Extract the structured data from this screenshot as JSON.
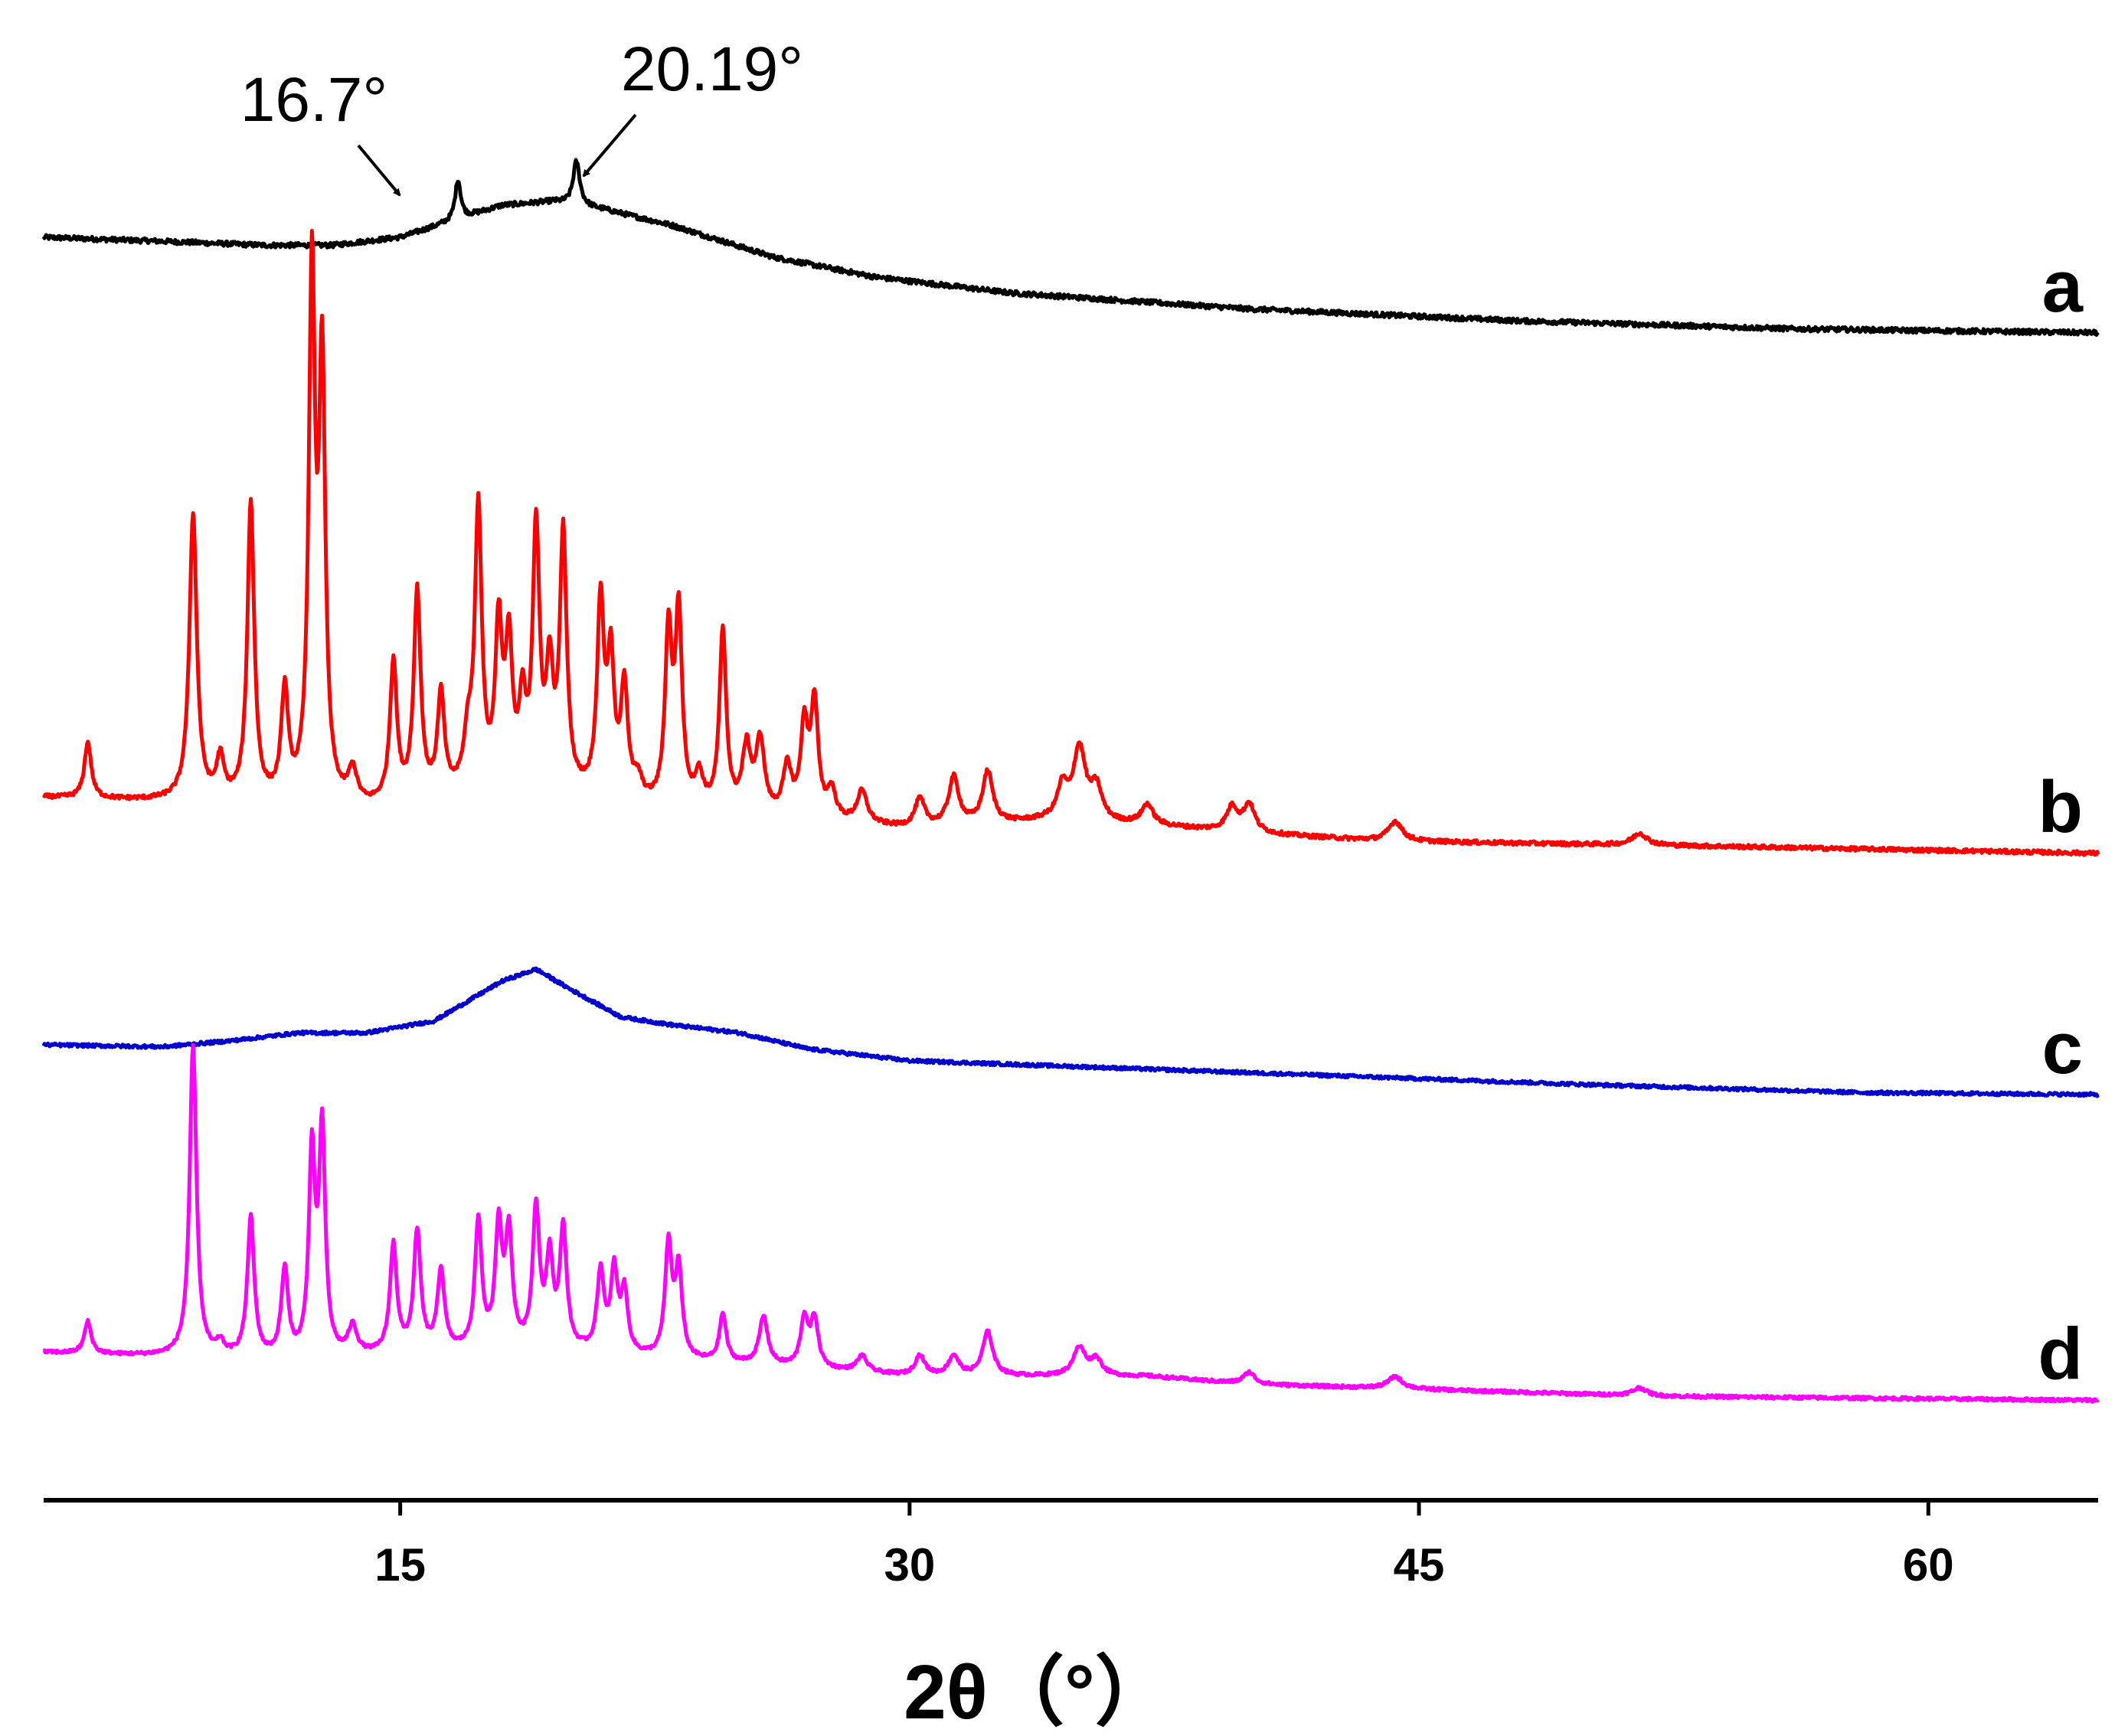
{
  "chart_data": {
    "type": "line",
    "xlabel": "2θ（°）",
    "xlim": [
      4.5,
      65
    ],
    "xticks": [
      15,
      30,
      45,
      60
    ],
    "series": [
      {
        "name": "a",
        "color": "#000000",
        "baseline": [
          [
            4.5,
            0.0
          ],
          [
            8,
            -0.01
          ],
          [
            11,
            -0.02
          ],
          [
            13,
            -0.02
          ],
          [
            15,
            0.0
          ],
          [
            16.5,
            0.04
          ],
          [
            18,
            0.08
          ],
          [
            19.5,
            0.09
          ],
          [
            21,
            0.07
          ],
          [
            23,
            0.03
          ],
          [
            26,
            -0.05
          ],
          [
            29,
            -0.1
          ],
          [
            33,
            -0.14
          ],
          [
            40,
            -0.18
          ],
          [
            48,
            -0.21
          ],
          [
            56,
            -0.23
          ],
          [
            65,
            -0.24
          ]
        ],
        "peaks": [
          [
            16.7,
            0.1,
            0.1
          ],
          [
            20.19,
            0.11,
            0.12
          ]
        ],
        "noise": 0.012
      },
      {
        "name": "b",
        "color": "#ff0000",
        "baseline": [
          [
            4.5,
            0.0
          ],
          [
            8,
            -0.01
          ],
          [
            12,
            -0.02
          ],
          [
            14,
            -0.03
          ],
          [
            17,
            0.0
          ],
          [
            20,
            0.0
          ],
          [
            23,
            -0.04
          ],
          [
            27,
            -0.06
          ],
          [
            30,
            -0.08
          ],
          [
            34,
            -0.06
          ],
          [
            37,
            -0.07
          ],
          [
            40,
            -0.09
          ],
          [
            44,
            -0.11
          ],
          [
            52,
            -0.12
          ],
          [
            65,
            -0.14
          ]
        ],
        "peaks": [
          [
            5.8,
            0.14,
            0.12
          ],
          [
            8.9,
            0.72,
            0.13
          ],
          [
            9.7,
            0.1,
            0.13
          ],
          [
            10.6,
            0.75,
            0.12
          ],
          [
            11.6,
            0.27,
            0.12
          ],
          [
            12.4,
            1.3,
            0.11
          ],
          [
            12.7,
            1.07,
            0.11
          ],
          [
            13.6,
            0.08,
            0.15
          ],
          [
            14.8,
            0.35,
            0.12
          ],
          [
            15.5,
            0.52,
            0.12
          ],
          [
            16.2,
            0.25,
            0.12
          ],
          [
            17.0,
            0.12,
            0.15
          ],
          [
            17.3,
            0.7,
            0.12
          ],
          [
            17.9,
            0.4,
            0.12
          ],
          [
            18.2,
            0.35,
            0.12
          ],
          [
            18.6,
            0.2,
            0.12
          ],
          [
            19.0,
            0.65,
            0.12
          ],
          [
            19.4,
            0.28,
            0.12
          ],
          [
            19.8,
            0.64,
            0.12
          ],
          [
            20.9,
            0.48,
            0.12
          ],
          [
            21.2,
            0.33,
            0.12
          ],
          [
            21.6,
            0.28,
            0.12
          ],
          [
            22.0,
            0.05,
            0.15
          ],
          [
            22.9,
            0.43,
            0.12
          ],
          [
            23.2,
            0.48,
            0.12
          ],
          [
            23.8,
            0.08,
            0.15
          ],
          [
            24.5,
            0.45,
            0.12
          ],
          [
            25.2,
            0.16,
            0.15
          ],
          [
            25.6,
            0.18,
            0.15
          ],
          [
            26.4,
            0.12,
            0.15
          ],
          [
            26.9,
            0.22,
            0.13
          ],
          [
            27.2,
            0.28,
            0.13
          ],
          [
            27.7,
            0.07,
            0.15
          ],
          [
            28.6,
            0.08,
            0.18
          ],
          [
            30.3,
            0.07,
            0.18
          ],
          [
            31.3,
            0.12,
            0.18
          ],
          [
            32.3,
            0.13,
            0.18
          ],
          [
            34.5,
            0.08,
            0.18
          ],
          [
            35.0,
            0.18,
            0.22
          ],
          [
            35.5,
            0.08,
            0.2
          ],
          [
            37.0,
            0.05,
            0.2
          ],
          [
            39.5,
            0.06,
            0.2
          ],
          [
            40.0,
            0.07,
            0.2
          ],
          [
            44.3,
            0.05,
            0.25
          ],
          [
            51.5,
            0.03,
            0.25
          ]
        ],
        "noise": 0.01
      },
      {
        "name": "c",
        "color": "#0000cc",
        "baseline": [
          [
            4.5,
            0.0
          ],
          [
            8,
            -0.005
          ],
          [
            10,
            0.01
          ],
          [
            12,
            0.03
          ],
          [
            14,
            0.03
          ],
          [
            16,
            0.06
          ],
          [
            18,
            0.16
          ],
          [
            19,
            0.19
          ],
          [
            20,
            0.14
          ],
          [
            21.5,
            0.07
          ],
          [
            23,
            0.05
          ],
          [
            25,
            0.03
          ],
          [
            27,
            -0.01
          ],
          [
            30,
            -0.04
          ],
          [
            40,
            -0.07
          ],
          [
            50,
            -0.1
          ],
          [
            58,
            -0.12
          ],
          [
            65,
            -0.125
          ]
        ],
        "peaks": [],
        "noise": 0.008
      },
      {
        "name": "d",
        "color": "#ff00ff",
        "baseline": [
          [
            4.5,
            0.0
          ],
          [
            8,
            -0.01
          ],
          [
            12,
            -0.02
          ],
          [
            16,
            0.0
          ],
          [
            20,
            0.0
          ],
          [
            23,
            -0.02
          ],
          [
            27,
            -0.04
          ],
          [
            30,
            -0.06
          ],
          [
            34,
            -0.06
          ],
          [
            37,
            -0.06
          ],
          [
            40,
            -0.08
          ],
          [
            44,
            -0.09
          ],
          [
            52,
            -0.11
          ],
          [
            65,
            -0.12
          ]
        ],
        "peaks": [
          [
            5.8,
            0.08,
            0.12
          ],
          [
            8.9,
            0.78,
            0.12
          ],
          [
            9.7,
            0.03,
            0.13
          ],
          [
            10.6,
            0.35,
            0.12
          ],
          [
            11.6,
            0.22,
            0.12
          ],
          [
            12.4,
            0.5,
            0.11
          ],
          [
            12.7,
            0.56,
            0.11
          ],
          [
            13.6,
            0.07,
            0.15
          ],
          [
            14.8,
            0.27,
            0.12
          ],
          [
            15.5,
            0.3,
            0.12
          ],
          [
            16.2,
            0.2,
            0.12
          ],
          [
            17.3,
            0.32,
            0.12
          ],
          [
            17.9,
            0.3,
            0.12
          ],
          [
            18.2,
            0.28,
            0.12
          ],
          [
            19.0,
            0.35,
            0.12
          ],
          [
            19.4,
            0.22,
            0.12
          ],
          [
            19.8,
            0.3,
            0.12
          ],
          [
            20.9,
            0.2,
            0.12
          ],
          [
            21.3,
            0.2,
            0.12
          ],
          [
            21.6,
            0.15,
            0.12
          ],
          [
            22.9,
            0.28,
            0.12
          ],
          [
            23.2,
            0.22,
            0.12
          ],
          [
            24.5,
            0.12,
            0.12
          ],
          [
            25.7,
            0.12,
            0.15
          ],
          [
            26.9,
            0.12,
            0.13
          ],
          [
            27.2,
            0.12,
            0.13
          ],
          [
            28.6,
            0.04,
            0.18
          ],
          [
            30.3,
            0.05,
            0.18
          ],
          [
            31.3,
            0.05,
            0.18
          ],
          [
            32.3,
            0.11,
            0.18
          ],
          [
            35.0,
            0.07,
            0.22
          ],
          [
            35.5,
            0.04,
            0.2
          ],
          [
            40.0,
            0.03,
            0.2
          ],
          [
            44.3,
            0.03,
            0.25
          ],
          [
            51.5,
            0.02,
            0.25
          ]
        ],
        "noise": 0.008
      }
    ],
    "annotations": [
      {
        "text": "16.7°",
        "x": 16.7,
        "series": "a"
      },
      {
        "text": "20.19°",
        "x": 20.19,
        "series": "a"
      }
    ],
    "grid": false,
    "legend": "none"
  }
}
